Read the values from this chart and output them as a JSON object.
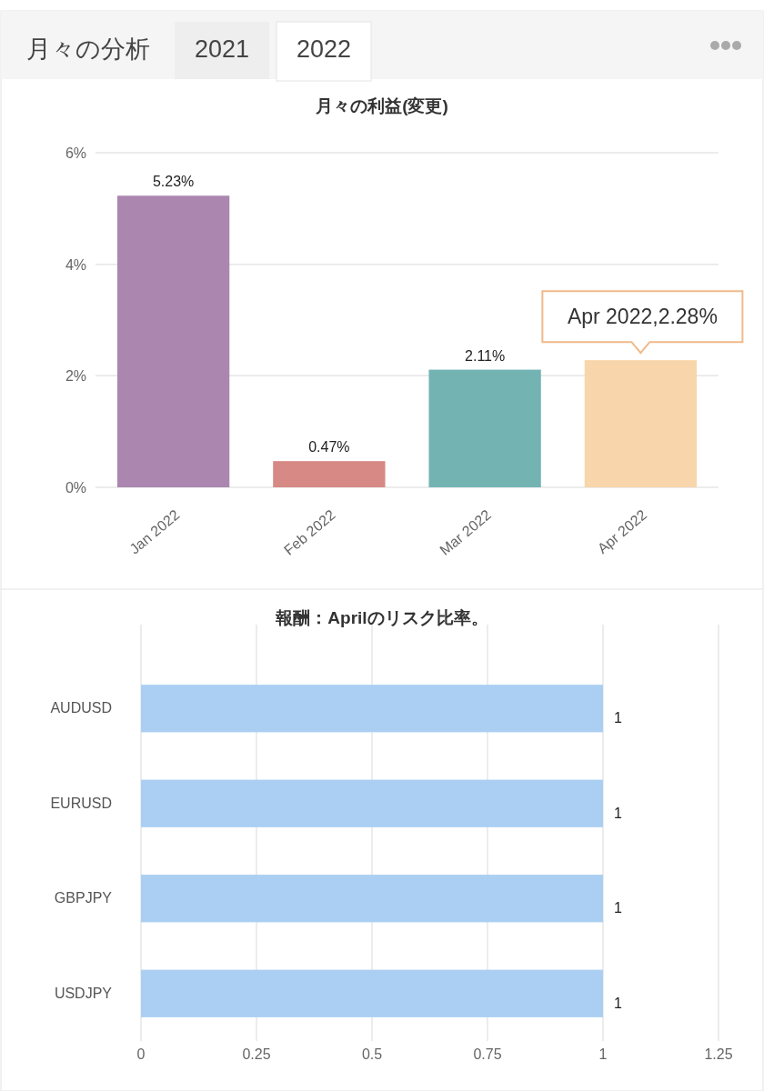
{
  "chart_data": [
    {
      "type": "bar",
      "title": "月々の利益(変更)",
      "annotations": [
        "月々の分析",
        "2021",
        "2022",
        {
          "text": "Apr 2022,2.28%",
          "x": "Apr 2022",
          "y": 2.28
        }
      ],
      "categories": [
        "Jan 2022",
        "Feb 2022",
        "Mar 2022",
        "Apr 2022"
      ],
      "values": [
        5.23,
        0.47,
        2.11,
        2.28
      ],
      "colors": [
        "#ab87b0",
        "#d68985",
        "#73b4b3",
        "#f8d5aa"
      ],
      "value_labels": [
        "5.23%",
        "0.47%",
        "2.11%",
        null
      ],
      "ylim": [
        0,
        6
      ],
      "yticks": [
        {
          "value": 0,
          "label": "0%"
        },
        {
          "value": 2,
          "label": "2%"
        },
        {
          "value": 4,
          "label": "4%"
        },
        {
          "value": 6,
          "label": "6%"
        }
      ],
      "grid": "y"
    },
    {
      "type": "bar",
      "orientation": "horizontal",
      "title": "報酬：Aprilのリスク比率。",
      "categories": [
        "AUDUSD",
        "EURUSD",
        "GBPJPY",
        "USDJPY"
      ],
      "values": [
        1,
        1,
        1,
        1
      ],
      "color": "#aacff2",
      "data_labels": true,
      "xlim": [
        0,
        1.25
      ],
      "xticks": [
        0,
        0.25,
        0.5,
        0.75,
        1,
        1.25
      ],
      "grid": "x"
    }
  ]
}
